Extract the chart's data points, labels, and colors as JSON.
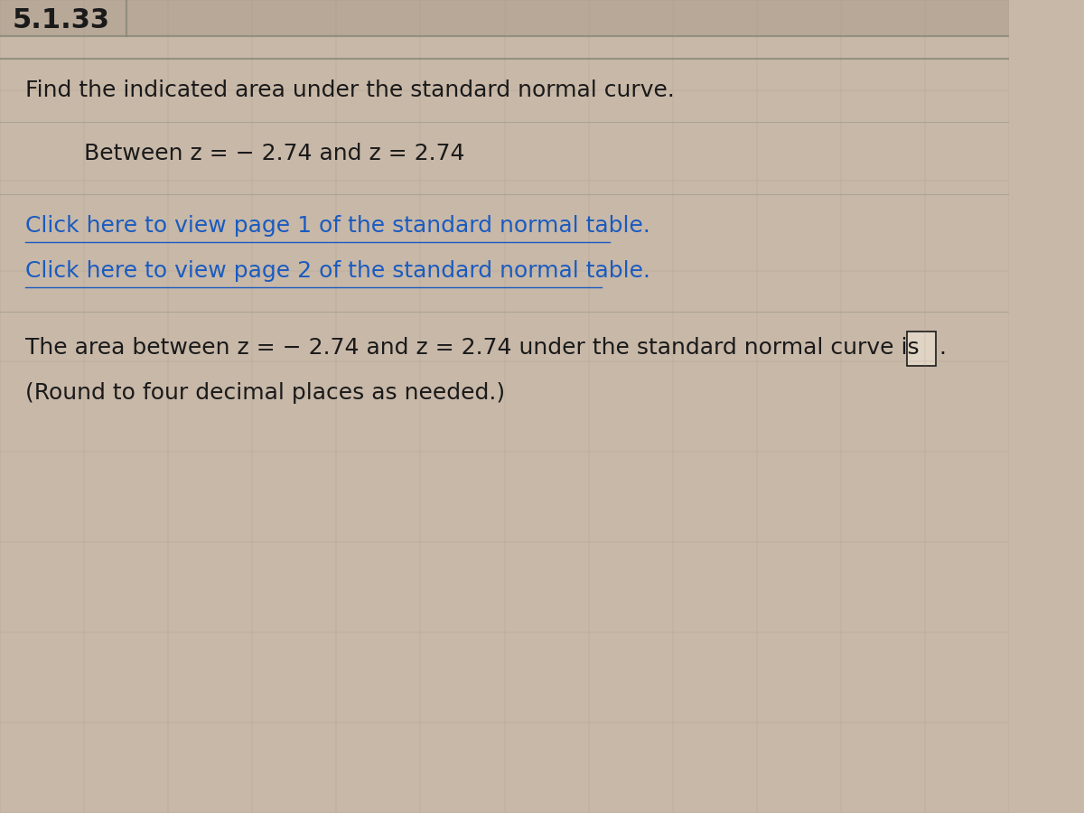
{
  "problem_number": "5.1.33",
  "background_color": "#c8b8a8",
  "header_line1": "Find the indicated area under the standard normal curve.",
  "header_line2": "Between z = − 2.74 and z = 2.74",
  "link1": "Click here to view page 1 of the standard normal table.",
  "link2": "Click here to view page 2 of the standard normal table.",
  "answer_line": "The area between z = − 2.74 and z = 2.74 under the standard normal curve is",
  "round_note": "(Round to four decimal places as needed.)",
  "text_color": "#1a1a1a",
  "link_color": "#1a5bbf",
  "title_fontsize": 22,
  "body_fontsize": 18,
  "link_fontsize": 18,
  "answer_fontsize": 18,
  "cell_line_color": "#a09080"
}
